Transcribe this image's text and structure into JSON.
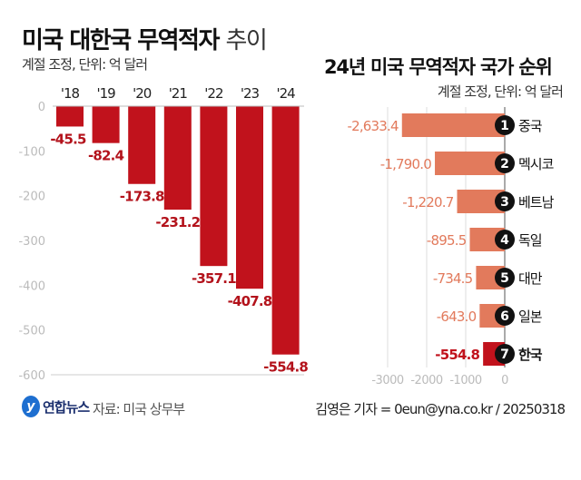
{
  "chart_data": [
    {
      "type": "bar",
      "title": "미국 대한국 무역적자",
      "title_light": "추이",
      "subtitle": "계절 조정, 단위: 억 달러",
      "categories": [
        "'18",
        "'19",
        "'20",
        "'21",
        "'22",
        "'23",
        "'24"
      ],
      "values": [
        -45.5,
        -82.4,
        -173.8,
        -231.2,
        -357.1,
        -407.8,
        -554.8
      ],
      "value_labels": [
        "-45.5",
        "-82.4",
        "-173.8",
        "-231.2",
        "-357.1",
        "-407.8",
        "-554.8"
      ],
      "ylim": [
        -600,
        0
      ],
      "yticks": [
        0,
        -100,
        -200,
        -300,
        -400,
        -500,
        -600
      ],
      "grid": false,
      "color": "#c1121c"
    },
    {
      "type": "bar",
      "orientation": "horizontal",
      "title": "24년 미국 무역적자 국가 순위",
      "subtitle": "계절 조정, 단위: 억 달러",
      "categories": [
        "중국",
        "멕시코",
        "베트남",
        "독일",
        "대만",
        "일본",
        "한국"
      ],
      "ranks": [
        "1",
        "2",
        "3",
        "4",
        "5",
        "6",
        "7"
      ],
      "values": [
        -2633.4,
        -1790.0,
        -1220.7,
        -895.5,
        -734.5,
        -643.0,
        -554.8
      ],
      "value_labels": [
        "-2,633.4",
        "-1,790.0",
        "-1,220.7",
        "-895.5",
        "-734.5",
        "-643.0",
        "-554.8"
      ],
      "xlim": [
        -3000,
        0
      ],
      "xticks": [
        -3000,
        -2000,
        -1000,
        0
      ],
      "grid": true,
      "color": "#e27a5c",
      "highlight": "한국",
      "highlight_color": "#c1121c"
    }
  ],
  "footer": {
    "logo": "연합뉴스",
    "source": "자료: 미국 상무부",
    "credit": "김영은 기자 = 0eun@yna.co.kr / 20250318"
  }
}
